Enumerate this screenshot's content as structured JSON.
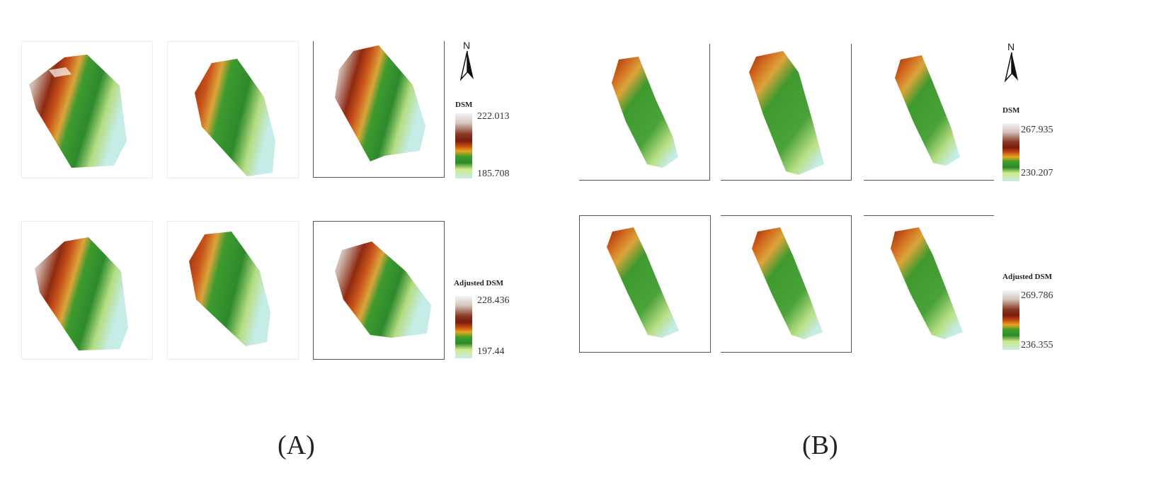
{
  "figure": {
    "panel_a": {
      "caption": "(A)",
      "north_label": "N",
      "dsm_legend": {
        "title": "DSM",
        "max": "222.013",
        "min": "185.708"
      },
      "adjusted_legend": {
        "title": "Adjusted DSM",
        "max": "228.436",
        "min": "197.44"
      }
    },
    "panel_b": {
      "caption": "(B)",
      "north_label": "N",
      "dsm_legend": {
        "title": "DSM",
        "max": "267.935",
        "min": "230.207"
      },
      "adjusted_legend": {
        "title": "Adjusted DSM",
        "max": "269.786",
        "min": "236.355"
      }
    },
    "colormap": [
      "#f4f4f4",
      "#d9cbc4",
      "#a8654e",
      "#7a1a0c",
      "#c24a12",
      "#e8a51e",
      "#3f9e2c",
      "#2c8a2a",
      "#cfe98a",
      "#c6ece8"
    ]
  }
}
